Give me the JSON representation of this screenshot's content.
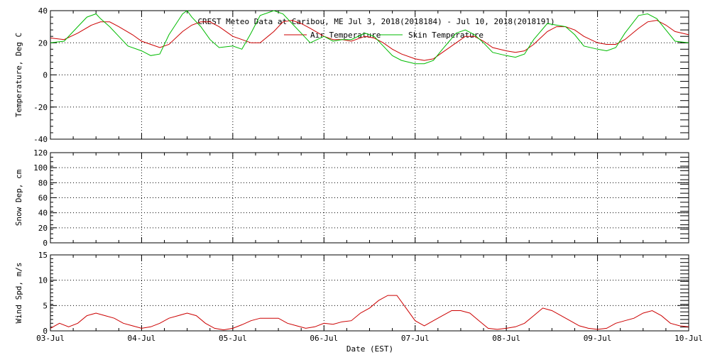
{
  "title": "CREST Meteo Data at Caribou, ME   Jul  3, 2018(2018184) - Jul 10, 2018(2018191)",
  "xlabel": "Date (EST)",
  "x_ticks": [
    "03-Jul",
    "04-Jul",
    "05-Jul",
    "06-Jul",
    "07-Jul",
    "08-Jul",
    "09-Jul",
    "10-Jul"
  ],
  "colors": {
    "air": "#cc0000",
    "skin": "#00bb00",
    "axes": "#000000"
  },
  "chart_data": [
    {
      "type": "line",
      "ylabel": "Temperature, Deg C",
      "ylim": [
        -40,
        40
      ],
      "yticks": [
        -40,
        -20,
        0,
        20,
        40
      ],
      "xlim": [
        0,
        7
      ],
      "grid": true,
      "legend_position": "top",
      "series": [
        {
          "name": "Air Temperature",
          "color": "#cc0000",
          "x": [
            0,
            0.15,
            0.3,
            0.45,
            0.55,
            0.65,
            0.75,
            0.9,
            1.0,
            1.1,
            1.2,
            1.3,
            1.45,
            1.55,
            1.65,
            1.75,
            1.85,
            2.0,
            2.1,
            2.2,
            2.3,
            2.45,
            2.55,
            2.65,
            2.75,
            2.85,
            3.0,
            3.1,
            3.2,
            3.3,
            3.45,
            3.55,
            3.65,
            3.75,
            3.85,
            4.0,
            4.1,
            4.2,
            4.3,
            4.45,
            4.55,
            4.65,
            4.75,
            4.85,
            5.0,
            5.1,
            5.2,
            5.3,
            5.45,
            5.55,
            5.65,
            5.75,
            5.85,
            6.0,
            6.1,
            6.2,
            6.3,
            6.45,
            6.55,
            6.65,
            6.75,
            6.85,
            7.0
          ],
          "y": [
            23,
            22,
            26,
            31,
            33,
            33,
            30,
            25,
            21,
            19,
            17,
            19,
            27,
            31,
            33,
            33,
            30,
            24,
            22,
            20,
            20,
            27,
            33,
            34,
            32,
            29,
            24,
            22,
            22,
            21,
            24,
            23,
            20,
            16,
            13,
            10,
            9,
            10,
            14,
            20,
            24,
            24,
            21,
            17,
            15,
            14,
            15,
            19,
            27,
            30,
            30,
            28,
            24,
            20,
            19,
            19,
            22,
            29,
            33,
            34,
            31,
            27,
            25
          ]
        },
        {
          "name": "Skin Temperature",
          "color": "#00bb00",
          "x": [
            0,
            0.15,
            0.3,
            0.4,
            0.5,
            0.55,
            0.65,
            0.75,
            0.85,
            1.0,
            1.1,
            1.2,
            1.3,
            1.45,
            1.5,
            1.55,
            1.65,
            1.75,
            1.85,
            2.0,
            2.1,
            2.2,
            2.3,
            2.45,
            2.55,
            2.65,
            2.75,
            2.85,
            3.0,
            3.1,
            3.2,
            3.3,
            3.45,
            3.55,
            3.65,
            3.75,
            3.85,
            4.0,
            4.1,
            4.2,
            4.3,
            4.45,
            4.55,
            4.65,
            4.75,
            4.85,
            5.0,
            5.1,
            5.2,
            5.3,
            5.45,
            5.55,
            5.65,
            5.75,
            5.85,
            6.0,
            6.1,
            6.2,
            6.3,
            6.45,
            6.55,
            6.65,
            6.75,
            6.85,
            7.0
          ],
          "y": [
            20,
            21,
            30,
            36,
            38,
            35,
            30,
            24,
            18,
            15,
            12,
            13,
            25,
            38,
            40,
            36,
            30,
            22,
            17,
            18,
            16,
            26,
            37,
            40,
            38,
            32,
            26,
            20,
            24,
            21,
            22,
            22,
            26,
            24,
            18,
            12,
            9,
            7,
            7,
            9,
            16,
            26,
            28,
            25,
            20,
            14,
            12,
            11,
            13,
            22,
            32,
            31,
            30,
            25,
            18,
            16,
            15,
            17,
            26,
            37,
            38,
            35,
            28,
            21,
            20
          ]
        }
      ]
    },
    {
      "type": "line",
      "ylabel": "Snow Dep, cm",
      "ylim": [
        0,
        120
      ],
      "yticks": [
        0,
        20,
        40,
        60,
        80,
        100,
        120
      ],
      "xlim": [
        0,
        7
      ],
      "grid": true,
      "series": []
    },
    {
      "type": "line",
      "ylabel": "Wind Spd, m/s",
      "ylim": [
        0,
        15
      ],
      "yticks": [
        0,
        5,
        10,
        15
      ],
      "xlim": [
        0,
        7
      ],
      "grid": true,
      "series": [
        {
          "color": "#cc0000",
          "x": [
            0,
            0.1,
            0.2,
            0.3,
            0.4,
            0.5,
            0.6,
            0.7,
            0.8,
            0.9,
            1.0,
            1.1,
            1.2,
            1.3,
            1.4,
            1.5,
            1.6,
            1.7,
            1.8,
            1.9,
            2.0,
            2.1,
            2.2,
            2.3,
            2.4,
            2.5,
            2.6,
            2.7,
            2.8,
            2.9,
            3.0,
            3.1,
            3.2,
            3.3,
            3.4,
            3.5,
            3.6,
            3.7,
            3.8,
            3.9,
            4.0,
            4.1,
            4.2,
            4.3,
            4.4,
            4.5,
            4.6,
            4.7,
            4.8,
            4.9,
            5.0,
            5.1,
            5.2,
            5.3,
            5.4,
            5.5,
            5.6,
            5.7,
            5.8,
            5.9,
            6.0,
            6.1,
            6.2,
            6.3,
            6.4,
            6.5,
            6.6,
            6.7,
            6.8,
            6.9,
            7.0
          ],
          "y": [
            0.5,
            1.5,
            0.8,
            1.5,
            3.0,
            3.5,
            3.0,
            2.5,
            1.5,
            1.0,
            0.5,
            0.8,
            1.5,
            2.5,
            3.0,
            3.5,
            3.0,
            1.5,
            0.5,
            0.2,
            0.5,
            1.2,
            2.0,
            2.5,
            2.5,
            2.5,
            1.5,
            1.0,
            0.5,
            0.8,
            1.5,
            1.3,
            1.8,
            2.0,
            3.5,
            4.5,
            6.0,
            7.0,
            7.0,
            4.5,
            2.0,
            1.0,
            2.0,
            3.0,
            4.0,
            4.0,
            3.5,
            2.0,
            0.5,
            0.3,
            0.5,
            0.8,
            1.5,
            3.0,
            4.5,
            4.0,
            3.0,
            2.0,
            1.0,
            0.5,
            0.3,
            0.5,
            1.5,
            2.0,
            2.5,
            3.5,
            4.0,
            3.0,
            1.5,
            1.0,
            0.8
          ]
        }
      ]
    }
  ]
}
